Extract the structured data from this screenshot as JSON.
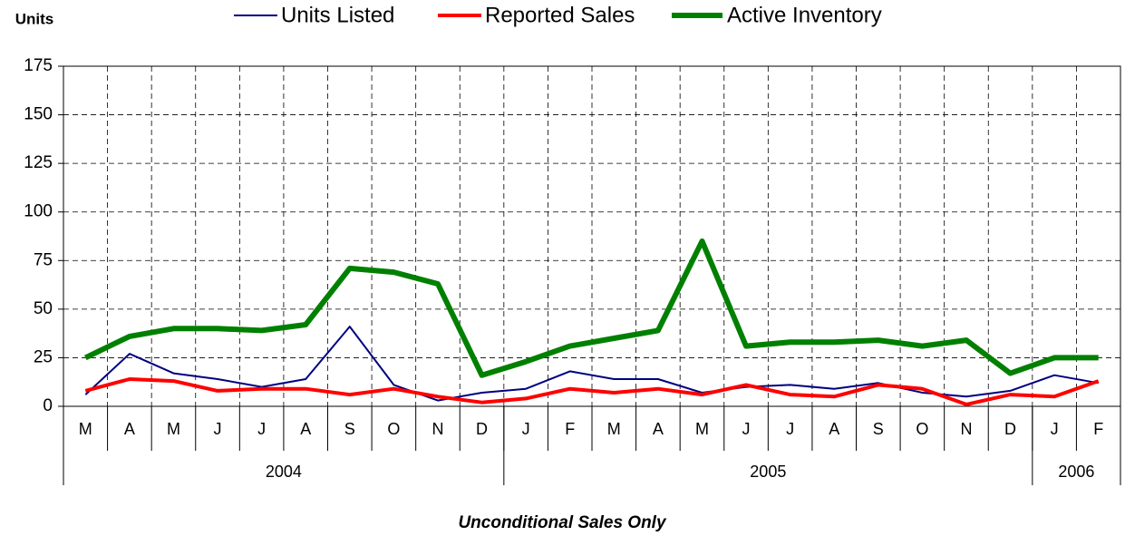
{
  "chart_data": {
    "type": "line",
    "y_title": "Units",
    "footnote": "Unconditional Sales Only",
    "categories": [
      "M",
      "A",
      "M",
      "J",
      "J",
      "A",
      "S",
      "O",
      "N",
      "D",
      "J",
      "F",
      "M",
      "A",
      "M",
      "J",
      "J",
      "A",
      "S",
      "O",
      "N",
      "D",
      "J",
      "F"
    ],
    "x_groups": [
      {
        "label": "2004",
        "count": 10
      },
      {
        "label": "2005",
        "count": 12
      },
      {
        "label": "2006",
        "count": 2
      }
    ],
    "series": [
      {
        "name": "Units Listed",
        "color": "#000080",
        "width": 2,
        "values": [
          6,
          27,
          17,
          14,
          10,
          14,
          41,
          11,
          3,
          7,
          9,
          18,
          14,
          14,
          7,
          10,
          11,
          9,
          12,
          7,
          5,
          8,
          16,
          12
        ]
      },
      {
        "name": "Reported Sales",
        "color": "#ff0000",
        "width": 4,
        "values": [
          8,
          14,
          13,
          8,
          9,
          9,
          6,
          9,
          5,
          2,
          4,
          9,
          7,
          9,
          6,
          11,
          6,
          5,
          11,
          9,
          1,
          6,
          5,
          13
        ]
      },
      {
        "name": "Active Inventory",
        "color": "#008000",
        "width": 6,
        "values": [
          25,
          36,
          40,
          40,
          39,
          42,
          71,
          69,
          63,
          16,
          23,
          31,
          35,
          39,
          85,
          31,
          33,
          33,
          34,
          31,
          34,
          17,
          25,
          25
        ]
      }
    ],
    "ylim": [
      0,
      175
    ],
    "yticks": [
      0,
      25,
      50,
      75,
      100,
      125,
      150,
      175
    ],
    "grid": true
  }
}
